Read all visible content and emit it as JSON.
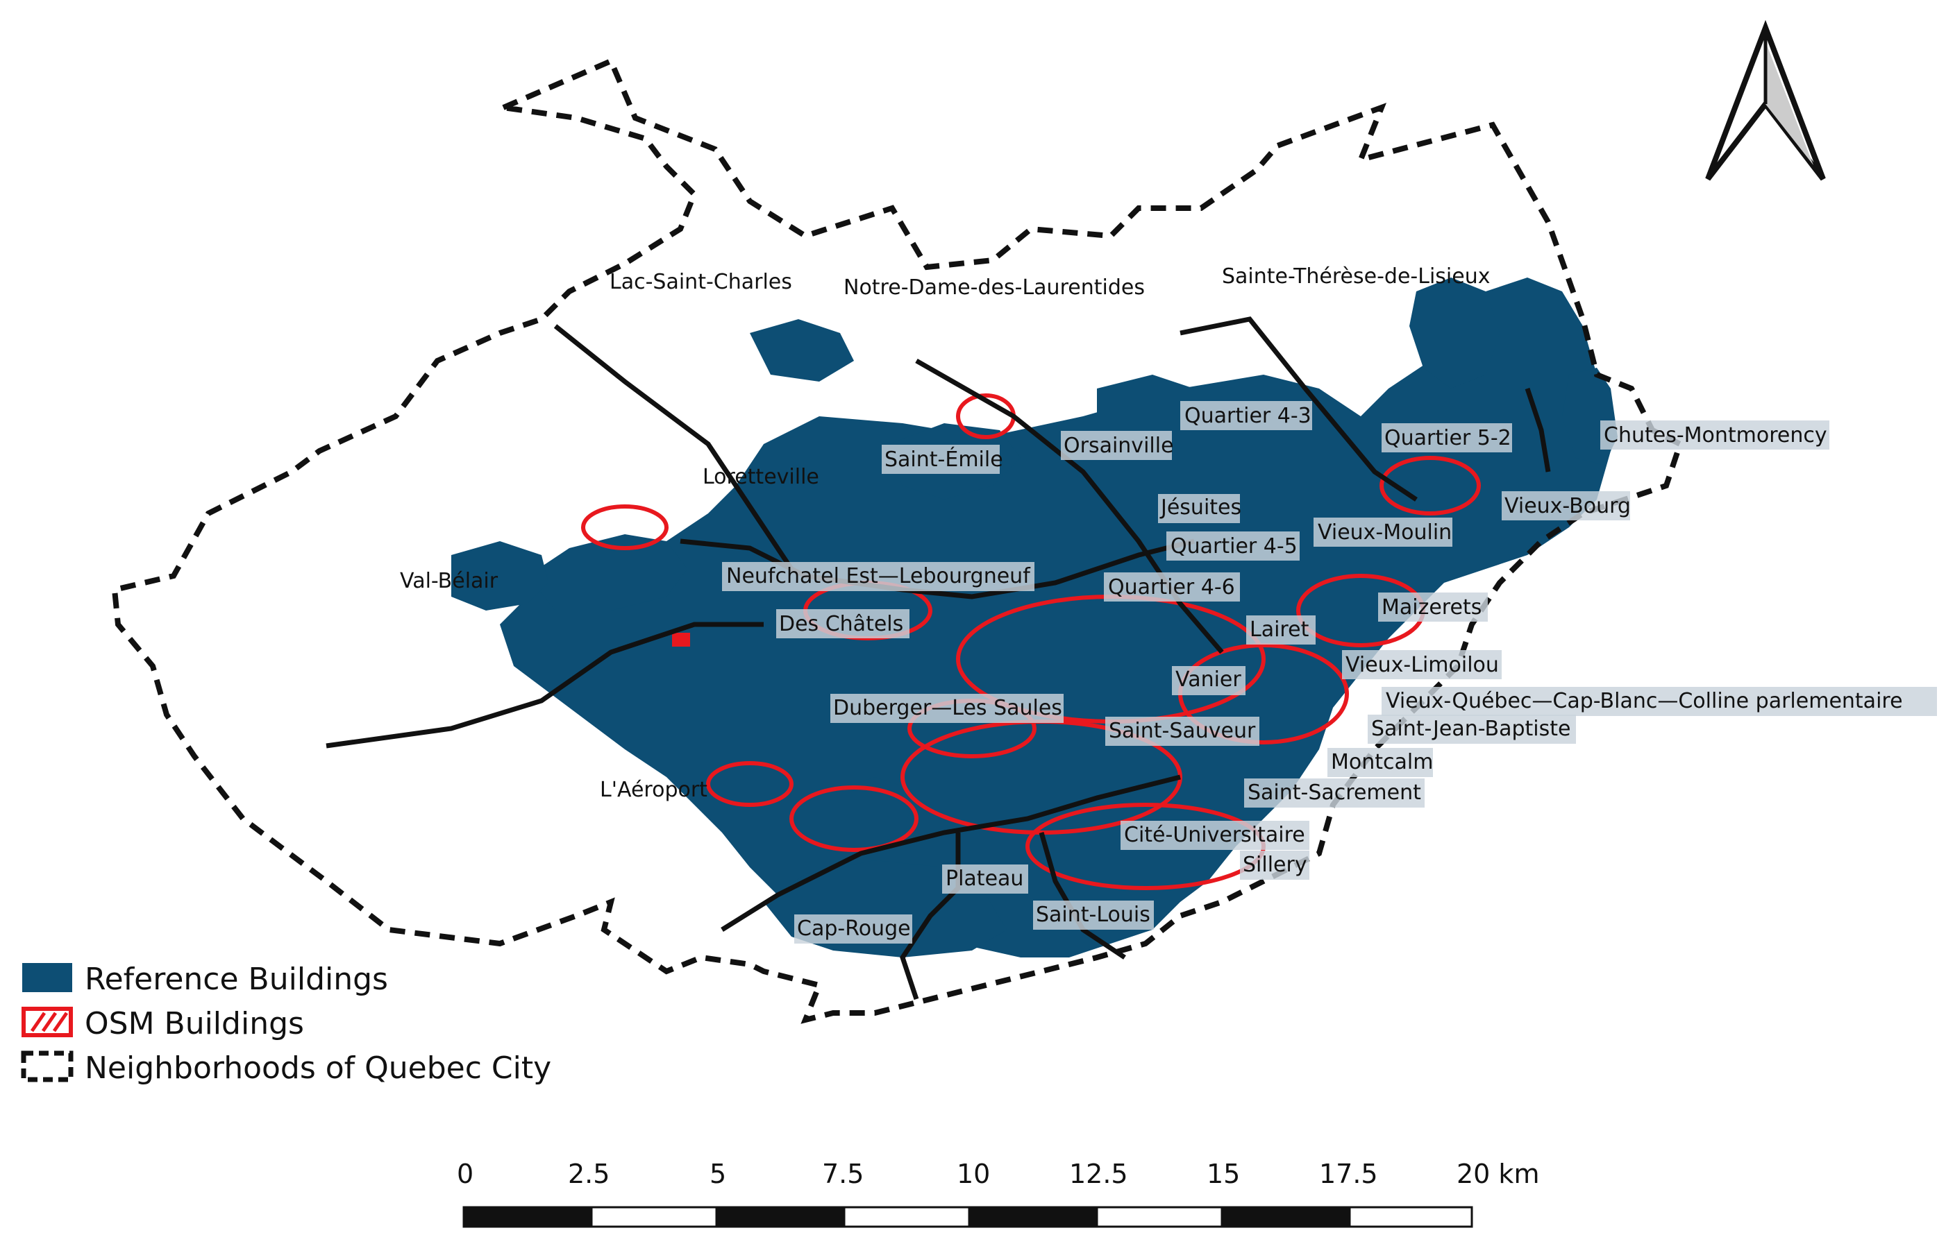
{
  "colors": {
    "reference_buildings": "#0d4e74",
    "osm_buildings": "#e8181e",
    "boundary": "#111111",
    "label_background": "#c9d3dc"
  },
  "neighborhood_labels": [
    "Lac-Saint-Charles",
    "Notre-Dame-des-Laurentides",
    "Sainte-Thérèse-de-Lisieux",
    "Quartier 4-3",
    "Quartier 5-2",
    "Chutes-Montmorency",
    "Orsainville",
    "Saint-Émile",
    "Loretteville",
    "Jésuites",
    "Vieux-Bourg",
    "Quartier 4-5",
    "Vieux-Moulin",
    "Val-Bélair",
    "Neufchatel Est—Lebourgneuf",
    "Quartier 4-6",
    "Maizerets",
    "Des Châtels",
    "Lairet",
    "Vieux-Limoilou",
    "Vanier",
    "Vieux-Québec—Cap-Blanc—Colline parlementaire",
    "Duberger—Les Saules",
    "Saint-Sauveur",
    "Saint-Jean-Baptiste",
    "Montcalm",
    "L'Aéroport",
    "Saint-Sacrement",
    "Cité-Universitaire",
    "Sillery",
    "Plateau",
    "Saint-Louis",
    "Cap-Rouge"
  ],
  "legend": {
    "reference": "Reference Buildings",
    "osm": "OSM Buildings",
    "neighborhoods": "Neighborhoods of Quebec City"
  },
  "scale_bar": {
    "ticks": [
      "0",
      "2.5",
      "5",
      "7.5",
      "10",
      "12.5",
      "15",
      "17.5",
      "20 km"
    ]
  },
  "north_arrow": {
    "icon": "north-arrow-icon"
  }
}
